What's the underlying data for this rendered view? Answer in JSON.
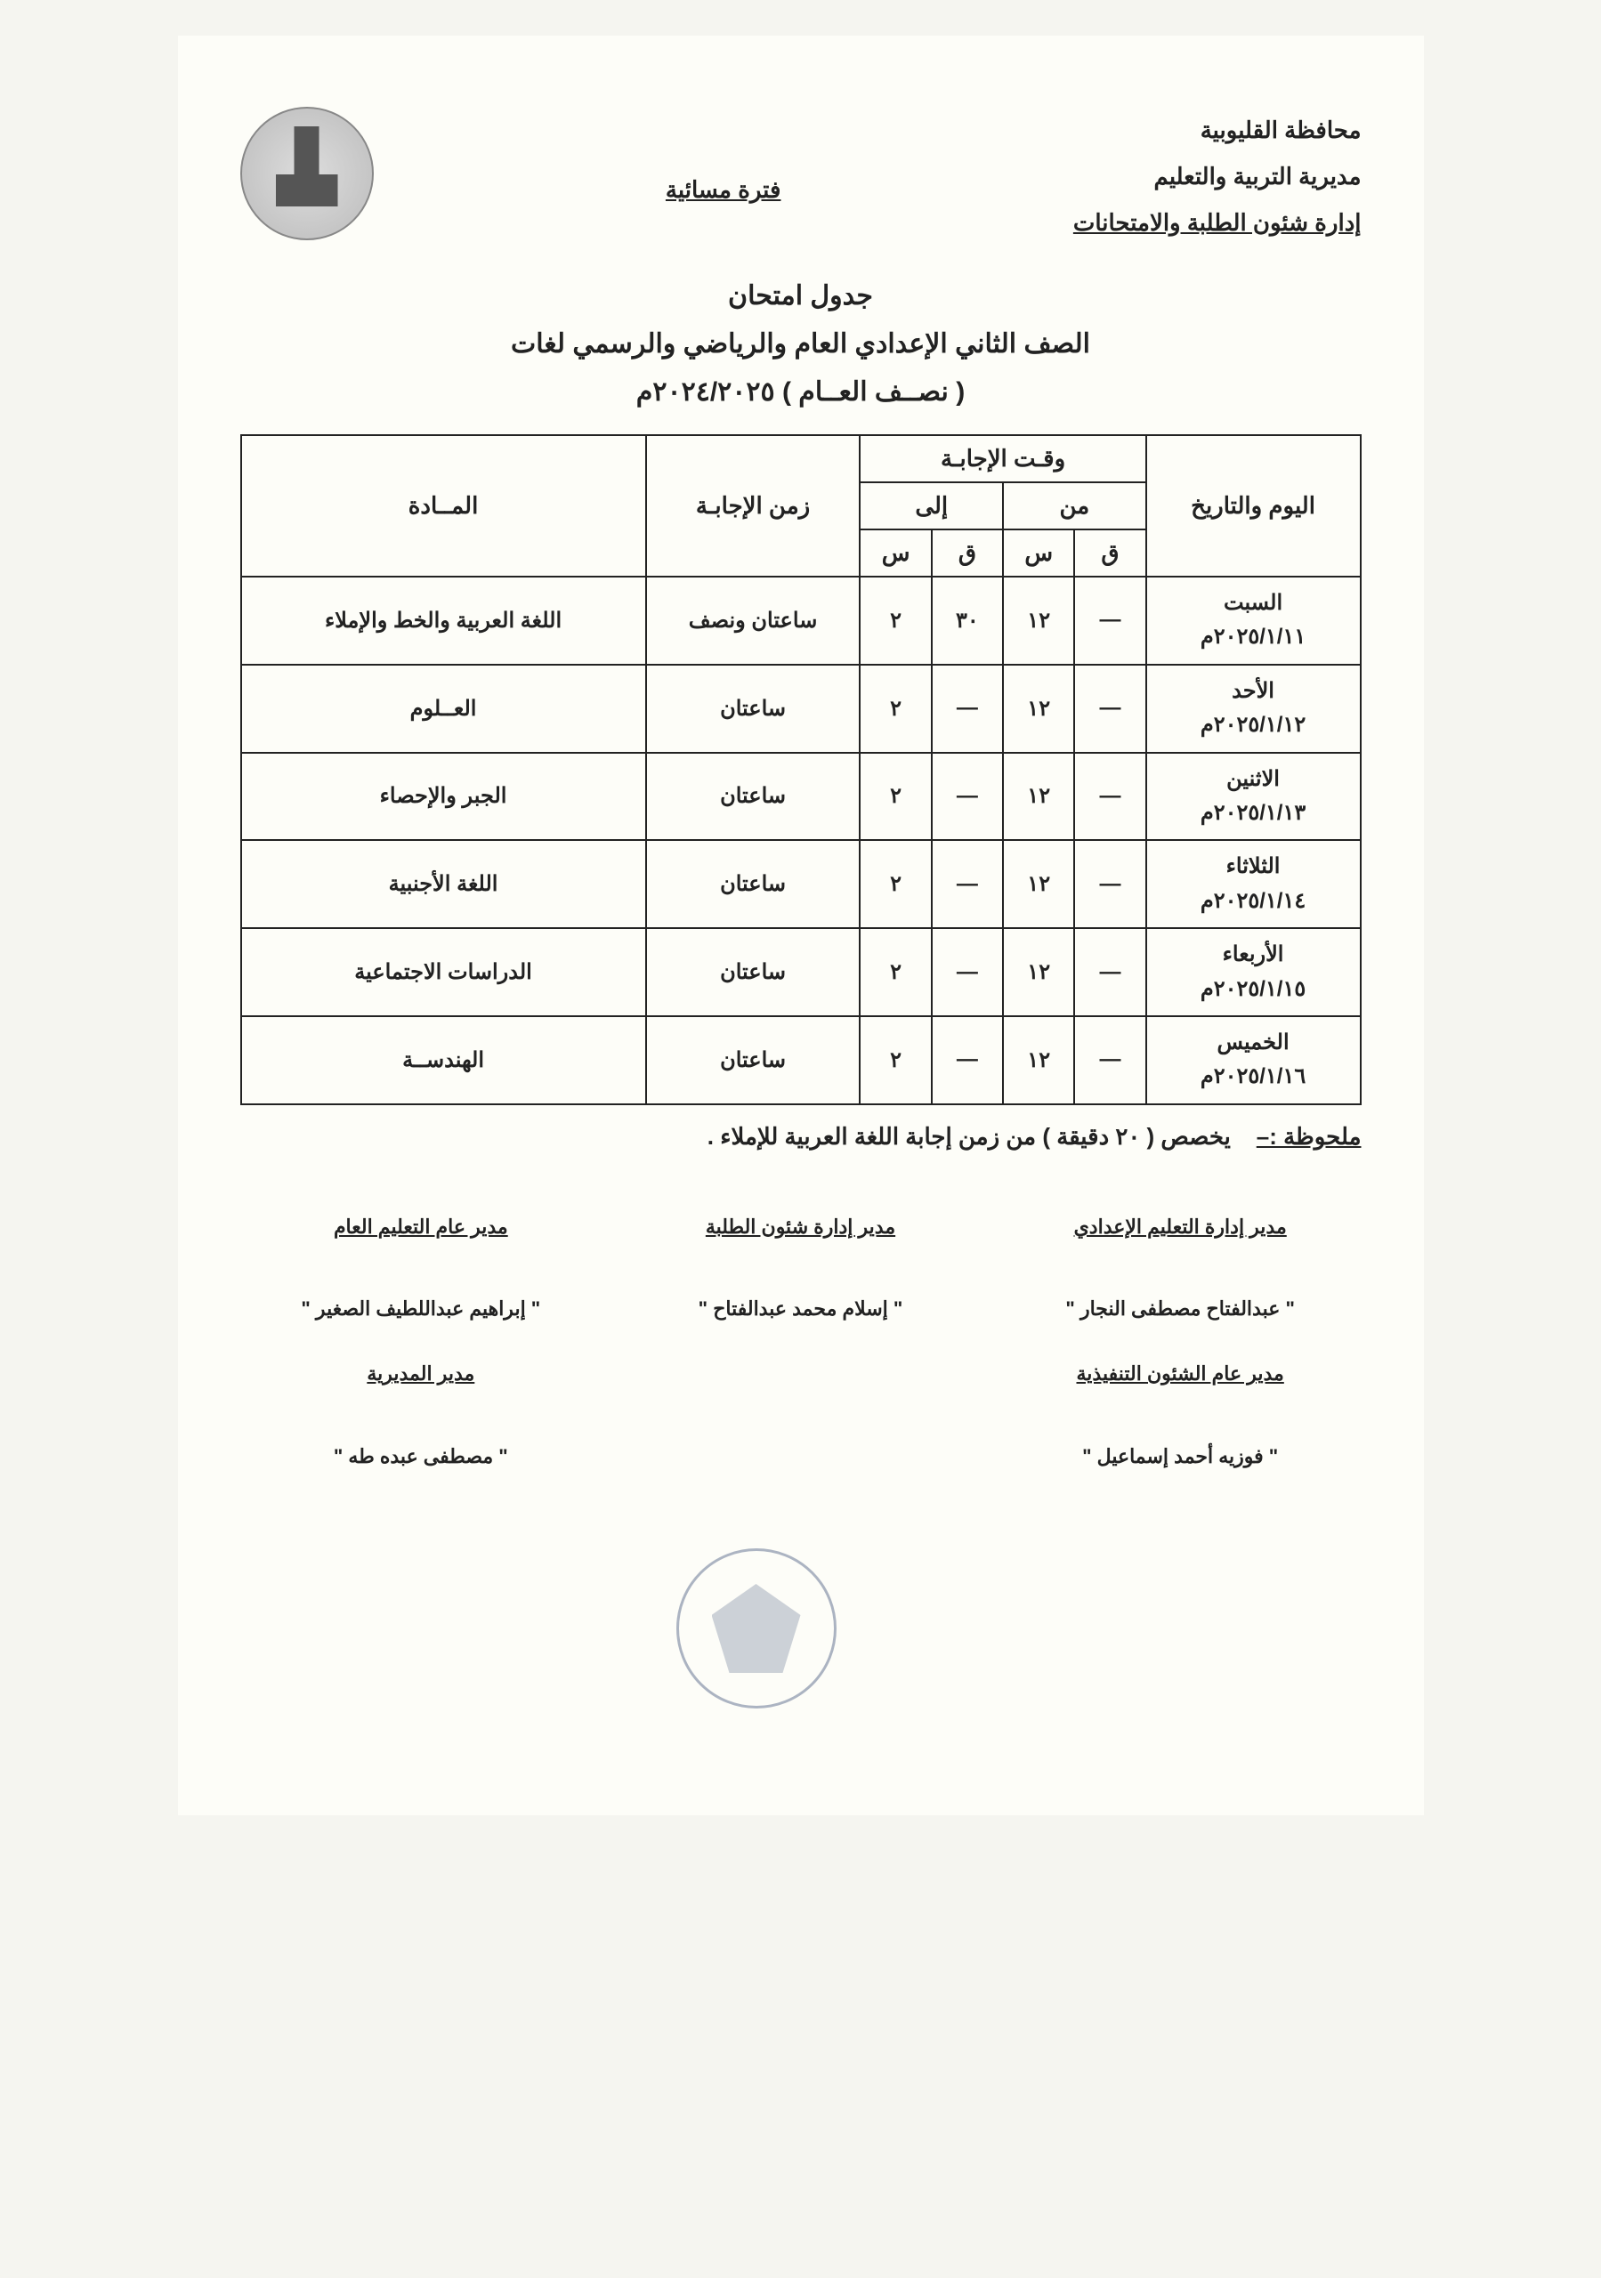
{
  "header": {
    "line1": "محافظة القليوبية",
    "line2": "مديرية التربية والتعليم",
    "line3": "إدارة شئون الطلبة والامتحانات",
    "period": "فترة مسائية"
  },
  "title": {
    "t1": "جدول امتحان",
    "t2": "الصف الثاني الإعدادي العام والرياضي والرسمي لغات",
    "t3": "( نصــف العــام ) ٢٠٢٤/٢٠٢٥م"
  },
  "table": {
    "headers": {
      "date": "اليوم والتاريخ",
      "answer_time": "وقـت الإجابـة",
      "from": "من",
      "to": "إلى",
      "q": "ق",
      "s": "س",
      "duration": "زمن الإجابـة",
      "subject": "المــادة"
    },
    "rows": [
      {
        "day": "السبت",
        "date": "٢٠٢٥/١/١١م",
        "from_q": "—",
        "from_s": "١٢",
        "to_q": "٣٠",
        "to_s": "٢",
        "duration": "ساعتان ونصف",
        "subject": "اللغة العربية والخط والإملاء"
      },
      {
        "day": "الأحد",
        "date": "٢٠٢٥/١/١٢م",
        "from_q": "—",
        "from_s": "١٢",
        "to_q": "—",
        "to_s": "٢",
        "duration": "ساعتان",
        "subject": "العــلوم"
      },
      {
        "day": "الاثنين",
        "date": "٢٠٢٥/١/١٣م",
        "from_q": "—",
        "from_s": "١٢",
        "to_q": "—",
        "to_s": "٢",
        "duration": "ساعتان",
        "subject": "الجبر والإحصاء"
      },
      {
        "day": "الثلاثاء",
        "date": "٢٠٢٥/١/١٤م",
        "from_q": "—",
        "from_s": "١٢",
        "to_q": "—",
        "to_s": "٢",
        "duration": "ساعتان",
        "subject": "اللغة الأجنبية"
      },
      {
        "day": "الأربعاء",
        "date": "٢٠٢٥/١/١٥م",
        "from_q": "—",
        "from_s": "١٢",
        "to_q": "—",
        "to_s": "٢",
        "duration": "ساعتان",
        "subject": "الدراسات الاجتماعية"
      },
      {
        "day": "الخميس",
        "date": "٢٠٢٥/١/١٦م",
        "from_q": "—",
        "from_s": "١٢",
        "to_q": "—",
        "to_s": "٢",
        "duration": "ساعتان",
        "subject": "الهندســة"
      }
    ]
  },
  "note": {
    "label": "ملحوظة :–",
    "text": "يخصص ( ٢٠ دقيقة ) من زمن إجابة اللغة العربية للإملاء ."
  },
  "signatures": {
    "right": [
      {
        "role": "مدير إدارة التعليم الإعدادي",
        "name": "\" عبدالفتاح مصطفى النجار \""
      },
      {
        "role": "مدير عام الشئون التنفيذية",
        "name": "\" فوزيه أحمد إسماعيل \""
      }
    ],
    "center": [
      {
        "role": "مدير إدارة شئون الطلبة",
        "name": "\" إسلام محمد عبدالفتاح \""
      }
    ],
    "left": [
      {
        "role": "مدير عام التعليم العام",
        "name": "\" إبراهيم عبداللطيف الصغير \""
      },
      {
        "role": "مدير المديرية",
        "name": "\" مصطفى عبده طه \""
      }
    ]
  }
}
